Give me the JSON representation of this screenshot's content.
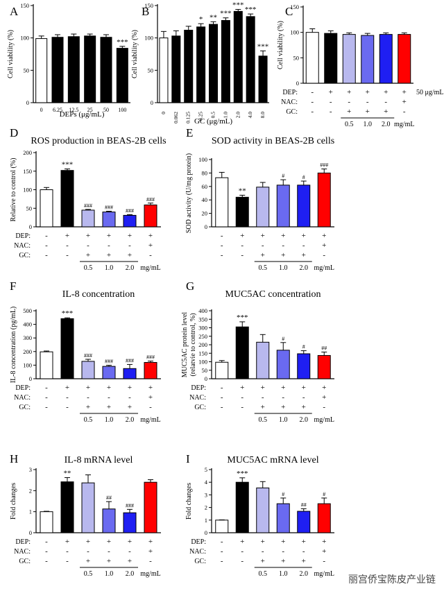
{
  "watermark": "丽宫侨宝陈皮产业链",
  "chart_data": [
    {
      "id": "A",
      "panel_letter": "A",
      "type": "bar",
      "title": "",
      "ylabel": "Cell viability (%)",
      "xlabel": "DEPs (μg/mL)",
      "ylim": [
        0,
        150
      ],
      "yticks": [
        0,
        50,
        100,
        150
      ],
      "categories": [
        "0",
        "6.25",
        "12.5",
        "25",
        "50",
        "100"
      ],
      "values": [
        99,
        101,
        102,
        103,
        101,
        84
      ],
      "errors": [
        4,
        4,
        4,
        3,
        4,
        3
      ],
      "colors": [
        "#ffffff",
        "#000000",
        "#000000",
        "#000000",
        "#000000",
        "#000000"
      ],
      "annotations": [
        "",
        "",
        "",
        "",
        "",
        "***"
      ]
    },
    {
      "id": "B",
      "panel_letter": "B",
      "type": "bar",
      "title": "",
      "ylabel": "Cell viability (%)",
      "xlabel": "GC (μg/mL)",
      "ylim": [
        0,
        150
      ],
      "yticks": [
        0,
        50,
        100,
        150
      ],
      "categories": [
        "0",
        "0.062",
        "0.125",
        "0.25",
        "0.5",
        "1.0",
        "2.0",
        "4.0",
        "8.0"
      ],
      "values": [
        100,
        103,
        112,
        117,
        121,
        127,
        141,
        133,
        72
      ],
      "errors": [
        10,
        8,
        6,
        5,
        4,
        4,
        3,
        4,
        8
      ],
      "colors": [
        "#ffffff",
        "#000000",
        "#000000",
        "#000000",
        "#000000",
        "#000000",
        "#000000",
        "#000000",
        "#000000"
      ],
      "annotations": [
        "",
        "",
        "",
        "*",
        "**",
        "***",
        "***",
        "***",
        "***"
      ]
    },
    {
      "id": "C",
      "panel_letter": "C",
      "type": "bar",
      "title": "",
      "ylabel": "Cell viability (%)",
      "ylim": [
        0,
        150
      ],
      "yticks": [
        0,
        50,
        100,
        150
      ],
      "values": [
        100,
        98,
        96,
        94,
        96,
        96
      ],
      "errors": [
        7,
        5,
        3,
        4,
        3,
        3
      ],
      "colors": [
        "#ffffff",
        "#000000",
        "#b8b8ee",
        "#6a6af0",
        "#1f1ff2",
        "#ff0000"
      ],
      "annotations": [
        "",
        "",
        "",
        "",
        "",
        ""
      ],
      "conditions": {
        "labels": [
          "DEP:",
          "NAC:",
          "GC:"
        ],
        "rows": [
          [
            "-",
            "+",
            "+",
            "+",
            "+",
            "+"
          ],
          [
            "-",
            "-",
            "-",
            "-",
            "-",
            "+"
          ],
          [
            "-",
            "-",
            "+",
            "+",
            "+",
            "-"
          ]
        ],
        "gc_doses": [
          "0.5",
          "1.0",
          "2.0"
        ],
        "gc_unit": "mg/mL",
        "dep_unit": "50 μg/mL"
      }
    },
    {
      "id": "D",
      "panel_letter": "D",
      "type": "bar",
      "title": "ROS production in BEAS-2B cells",
      "ylabel": "Relative to control (%)",
      "ylim": [
        0,
        200
      ],
      "yticks": [
        0,
        50,
        100,
        150,
        200
      ],
      "values": [
        100,
        152,
        45,
        40,
        31,
        59
      ],
      "errors": [
        6,
        4,
        2,
        2,
        2,
        5
      ],
      "colors": [
        "#ffffff",
        "#000000",
        "#b8b8ee",
        "#6a6af0",
        "#1f1ff2",
        "#ff0000"
      ],
      "annotations": [
        "",
        "***",
        "###",
        "###",
        "###",
        "###"
      ],
      "conditions": {
        "labels": [
          "DEP:",
          "NAC:",
          "GC:"
        ],
        "rows": [
          [
            "-",
            "+",
            "+",
            "+",
            "+",
            "+"
          ],
          [
            "-",
            "-",
            "-",
            "-",
            "-",
            "+"
          ],
          [
            "-",
            "-",
            "+",
            "+",
            "+",
            "-"
          ]
        ],
        "gc_doses": [
          "0.5",
          "1.0",
          "2.0"
        ],
        "gc_unit": "mg/mL"
      }
    },
    {
      "id": "E",
      "panel_letter": "E",
      "type": "bar",
      "title": "SOD activity in BEAS-2B cells",
      "ylabel": "SOD activity (U/mg protein)",
      "ylim": [
        0,
        100
      ],
      "yticks": [
        0,
        20,
        40,
        60,
        80,
        100
      ],
      "values": [
        73,
        44,
        59,
        62,
        62,
        80
      ],
      "errors": [
        8,
        3,
        7,
        8,
        6,
        6
      ],
      "colors": [
        "#ffffff",
        "#000000",
        "#b8b8ee",
        "#6a6af0",
        "#1f1ff2",
        "#ff0000"
      ],
      "annotations": [
        "",
        "**",
        "",
        "#",
        "#",
        "###"
      ],
      "conditions": {
        "labels": [
          "",
          "",
          ""
        ],
        "rows": [
          [
            "-",
            "+",
            "+",
            "+",
            "+",
            "+"
          ],
          [
            "-",
            "-",
            "-",
            "-",
            "-",
            "+"
          ],
          [
            "-",
            "-",
            "+",
            "+",
            "+",
            "-"
          ]
        ],
        "gc_doses": [
          "0.5",
          "1.0",
          "2.0"
        ],
        "gc_unit": "mg/mL"
      }
    },
    {
      "id": "F",
      "panel_letter": "F",
      "type": "bar",
      "title": "IL-8 concentration",
      "ylabel": "IL-8 concentration (pg/mL)",
      "ylim": [
        0,
        500
      ],
      "yticks": [
        0,
        100,
        200,
        300,
        400,
        500
      ],
      "values": [
        198,
        442,
        128,
        91,
        75,
        120
      ],
      "errors": [
        6,
        6,
        15,
        8,
        30,
        10
      ],
      "colors": [
        "#ffffff",
        "#000000",
        "#b8b8ee",
        "#6a6af0",
        "#1f1ff2",
        "#ff0000"
      ],
      "annotations": [
        "",
        "***",
        "###",
        "###",
        "###",
        "###"
      ],
      "conditions": {
        "labels": [
          "DEP:",
          "NAC:",
          "GC:"
        ],
        "rows": [
          [
            "-",
            "+",
            "+",
            "+",
            "+",
            "+"
          ],
          [
            "-",
            "-",
            "-",
            "-",
            "-",
            "+"
          ],
          [
            "-",
            "-",
            "+",
            "+",
            "+",
            "-"
          ]
        ],
        "gc_doses": [
          "0.5",
          "1.0",
          "2.0"
        ],
        "gc_unit": "mg/mL"
      }
    },
    {
      "id": "G",
      "panel_letter": "G",
      "type": "bar",
      "title": "MUC5AC concentration",
      "ylabel": "MUC5AC protein level",
      "ylabel2": "(relatvie to control, %)",
      "ylim": [
        0,
        400
      ],
      "yticks": [
        0,
        50,
        100,
        150,
        200,
        250,
        300,
        350,
        400
      ],
      "values": [
        97,
        305,
        215,
        168,
        147,
        137
      ],
      "errors": [
        10,
        30,
        45,
        45,
        18,
        20
      ],
      "colors": [
        "#ffffff",
        "#000000",
        "#b8b8ee",
        "#6a6af0",
        "#1f1ff2",
        "#ff0000"
      ],
      "annotations": [
        "",
        "***",
        "",
        "#",
        "#",
        "##"
      ],
      "conditions": {
        "labels": [
          "DEP:",
          "NAC:",
          "GC:"
        ],
        "rows": [
          [
            "-",
            "+",
            "+",
            "+",
            "+",
            "+"
          ],
          [
            "-",
            "-",
            "-",
            "-",
            "-",
            "+"
          ],
          [
            "-",
            "-",
            "+",
            "+",
            "+",
            "-"
          ]
        ],
        "gc_doses": [
          "0.5",
          "1.0",
          "2.0"
        ],
        "gc_unit": "mg/mL"
      }
    },
    {
      "id": "H",
      "panel_letter": "H",
      "type": "bar",
      "title": "IL-8 mRNA  level",
      "ylabel": "Fold changes",
      "ylim": [
        0,
        3
      ],
      "yticks": [
        0,
        1,
        2,
        3
      ],
      "values": [
        1.0,
        2.42,
        2.37,
        1.13,
        0.95,
        2.4
      ],
      "errors": [
        0.02,
        0.2,
        0.38,
        0.35,
        0.16,
        0.12
      ],
      "colors": [
        "#ffffff",
        "#000000",
        "#b8b8ee",
        "#6a6af0",
        "#1f1ff2",
        "#ff0000"
      ],
      "annotations": [
        "",
        "**",
        "",
        "##",
        "###",
        ""
      ],
      "conditions": {
        "labels": [
          "DEP:",
          "NAC:",
          "GC:"
        ],
        "rows": [
          [
            "-",
            "+",
            "+",
            "+",
            "+",
            "+"
          ],
          [
            "-",
            "-",
            "-",
            "-",
            "-",
            "+"
          ],
          [
            "-",
            "-",
            "+",
            "+",
            "+",
            "-"
          ]
        ],
        "gc_doses": [
          "0.5",
          "1.0",
          "2.0"
        ],
        "gc_unit": "mg/mL"
      }
    },
    {
      "id": "I",
      "panel_letter": "I",
      "type": "bar",
      "title": "MUC5AC mRNA level",
      "ylabel": "Fold changes",
      "ylim": [
        0,
        5
      ],
      "yticks": [
        0,
        1,
        2,
        3,
        4,
        5
      ],
      "values": [
        1.0,
        4.0,
        3.55,
        2.3,
        1.7,
        2.3
      ],
      "errors": [
        0.02,
        0.35,
        0.5,
        0.45,
        0.2,
        0.45
      ],
      "colors": [
        "#ffffff",
        "#000000",
        "#b8b8ee",
        "#6a6af0",
        "#1f1ff2",
        "#ff0000"
      ],
      "annotations": [
        "",
        "***",
        "",
        "#",
        "##",
        "#"
      ],
      "conditions": {
        "labels": [
          "DEP:",
          "NAC:",
          "GC:"
        ],
        "rows": [
          [
            "-",
            "+",
            "+",
            "+",
            "+",
            "+"
          ],
          [
            "-",
            "-",
            "-",
            "-",
            "-",
            "+"
          ],
          [
            "-",
            "-",
            "+",
            "+",
            "+",
            "-"
          ]
        ],
        "gc_doses": [
          "0.5",
          "1.0",
          "2.0"
        ],
        "gc_unit": "mg/mL"
      }
    }
  ]
}
